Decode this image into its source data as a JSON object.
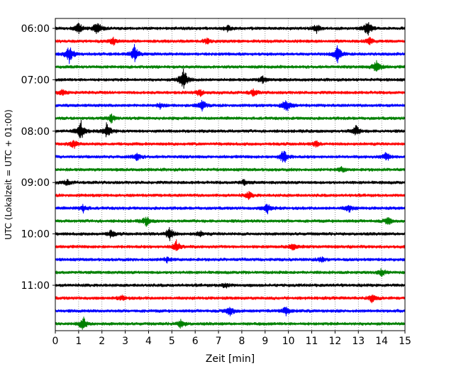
{
  "chart_data": {
    "type": "line",
    "title": "",
    "xlabel": "Zeit  [min]",
    "ylabel": "UTC (Lokalzeit = UTC + 01:00)",
    "xlim": [
      0,
      15
    ],
    "x_ticks": [
      "0",
      "1",
      "2",
      "3",
      "4",
      "5",
      "6",
      "7",
      "8",
      "9",
      "10",
      "11",
      "12",
      "13",
      "14",
      "15"
    ],
    "y_tick_labels": [
      "06:00",
      "07:00",
      "08:00",
      "09:00",
      "10:00",
      "11:00"
    ],
    "grid": "vertical-dotted",
    "legend": "none",
    "trace_colors": [
      "#000000",
      "#ff0000",
      "#0000ff",
      "#008000"
    ],
    "series": [
      {
        "start": "06:00",
        "color": "#000000",
        "events": [
          [
            1.0,
            0.6
          ],
          [
            1.8,
            0.8
          ],
          [
            7.4,
            0.4
          ],
          [
            11.2,
            0.5
          ],
          [
            13.4,
            0.9
          ]
        ]
      },
      {
        "start": "06:15",
        "color": "#ff0000",
        "events": [
          [
            2.5,
            0.4
          ],
          [
            6.5,
            0.3
          ],
          [
            13.5,
            0.4
          ]
        ]
      },
      {
        "start": "06:30",
        "color": "#0000ff",
        "events": [
          [
            0.6,
            1.0
          ],
          [
            3.4,
            1.0
          ],
          [
            12.1,
            1.0
          ]
        ]
      },
      {
        "start": "06:45",
        "color": "#008000",
        "events": [
          [
            13.8,
            0.9
          ]
        ]
      },
      {
        "start": "07:00",
        "color": "#000000",
        "events": [
          [
            5.5,
            1.4
          ],
          [
            8.9,
            0.4
          ]
        ]
      },
      {
        "start": "07:15",
        "color": "#ff0000",
        "events": [
          [
            0.3,
            0.3
          ],
          [
            6.2,
            0.4
          ],
          [
            8.5,
            0.4
          ]
        ]
      },
      {
        "start": "07:30",
        "color": "#0000ff",
        "events": [
          [
            4.5,
            0.3
          ],
          [
            6.3,
            0.6
          ],
          [
            9.9,
            0.9
          ]
        ]
      },
      {
        "start": "07:45",
        "color": "#008000",
        "events": [
          [
            2.4,
            0.5
          ]
        ]
      },
      {
        "start": "08:00",
        "color": "#000000",
        "events": [
          [
            1.1,
            1.2
          ],
          [
            2.2,
            0.9
          ],
          [
            12.9,
            0.6
          ]
        ]
      },
      {
        "start": "08:15",
        "color": "#ff0000",
        "events": [
          [
            0.8,
            0.5
          ],
          [
            11.2,
            0.3
          ]
        ]
      },
      {
        "start": "08:30",
        "color": "#0000ff",
        "events": [
          [
            3.5,
            0.4
          ],
          [
            9.8,
            0.9
          ],
          [
            14.2,
            0.5
          ]
        ]
      },
      {
        "start": "08:45",
        "color": "#008000",
        "events": [
          [
            12.3,
            0.3
          ]
        ]
      },
      {
        "start": "09:00",
        "color": "#000000",
        "events": [
          [
            0.5,
            0.3
          ],
          [
            8.1,
            0.3
          ]
        ]
      },
      {
        "start": "09:15",
        "color": "#ff0000",
        "events": [
          [
            8.3,
            0.4
          ]
        ]
      },
      {
        "start": "09:30",
        "color": "#0000ff",
        "events": [
          [
            1.2,
            0.4
          ],
          [
            9.1,
            0.6
          ],
          [
            12.6,
            0.4
          ]
        ]
      },
      {
        "start": "09:45",
        "color": "#008000",
        "events": [
          [
            3.9,
            0.5
          ],
          [
            14.3,
            0.5
          ]
        ]
      },
      {
        "start": "10:00",
        "color": "#000000",
        "events": [
          [
            2.4,
            0.4
          ],
          [
            4.9,
            0.8
          ],
          [
            6.2,
            0.3
          ]
        ]
      },
      {
        "start": "10:15",
        "color": "#ff0000",
        "events": [
          [
            5.2,
            0.7
          ],
          [
            10.2,
            0.4
          ]
        ]
      },
      {
        "start": "10:30",
        "color": "#0000ff",
        "events": [
          [
            4.8,
            0.3
          ],
          [
            11.4,
            0.3
          ]
        ]
      },
      {
        "start": "10:45",
        "color": "#008000",
        "events": [
          [
            14.0,
            0.4
          ]
        ]
      },
      {
        "start": "11:00",
        "color": "#000000",
        "events": [
          [
            7.3,
            0.3
          ]
        ]
      },
      {
        "start": "11:15",
        "color": "#ff0000",
        "events": [
          [
            2.9,
            0.3
          ],
          [
            13.6,
            0.5
          ]
        ]
      },
      {
        "start": "11:30",
        "color": "#0000ff",
        "events": [
          [
            7.5,
            0.7
          ],
          [
            9.9,
            0.6
          ]
        ]
      },
      {
        "start": "11:45",
        "color": "#008000",
        "events": [
          [
            1.2,
            0.8
          ],
          [
            5.4,
            0.5
          ]
        ]
      }
    ]
  }
}
